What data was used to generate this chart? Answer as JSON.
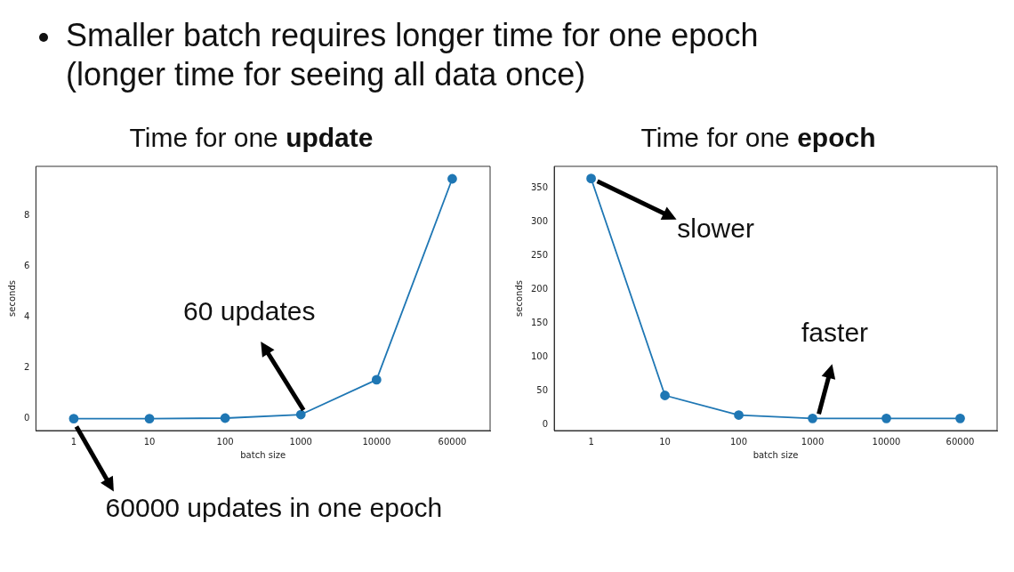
{
  "chart_data": [
    {
      "type": "other",
      "annotations": [
        "Smaller batch requires longer time for one epoch",
        "(longer time for seeing all data once)"
      ]
    },
    {
      "type": "line",
      "title": "Time for one update",
      "xlabel": "batch size",
      "ylabel": "seconds",
      "categories": [
        "1",
        "10",
        "100",
        "1000",
        "10000",
        "60000"
      ],
      "series": [
        {
          "color": "#1f77b4",
          "values": [
            0,
            0,
            0.02,
            0.16,
            1.53,
            9.45
          ]
        }
      ],
      "ylim": [
        -0.47,
        9.94
      ],
      "yticks": [
        0,
        2,
        4,
        6,
        8
      ],
      "grid": false,
      "legend": false,
      "marker": "circle",
      "line_style": "solid",
      "annotations": [
        {
          "text": "60 updates",
          "x": "1000",
          "y": 0.16
        },
        {
          "text": "60000 updates in one epoch",
          "x": "1",
          "y": 0
        }
      ]
    },
    {
      "type": "line",
      "title": "Time for one epoch",
      "xlabel": "batch size",
      "ylabel": "seconds",
      "categories": [
        "1",
        "10",
        "100",
        "1000",
        "10000",
        "60000"
      ],
      "series": [
        {
          "color": "#1f77b4",
          "values": [
            364,
            43,
            14,
            9,
            9,
            9
          ]
        }
      ],
      "ylim": [
        -9,
        382
      ],
      "yticks": [
        0,
        50,
        100,
        150,
        200,
        250,
        300,
        350
      ],
      "grid": false,
      "legend": false,
      "marker": "circle",
      "line_style": "solid",
      "annotations": [
        {
          "text": "slower",
          "x": "1",
          "y": 364
        },
        {
          "text": "faster",
          "x": "1000",
          "y": 9
        }
      ]
    }
  ]
}
